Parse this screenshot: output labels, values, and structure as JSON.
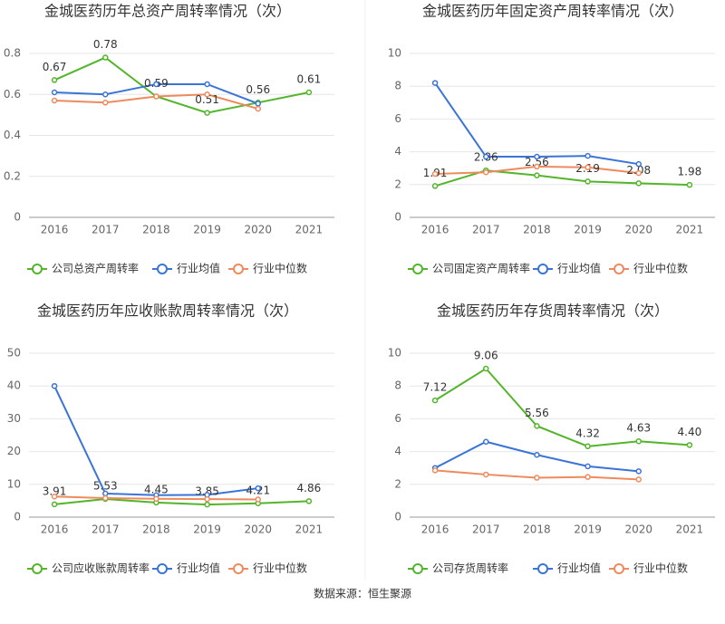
{
  "chart_data": [
    {
      "type": "line",
      "title": "金城医药历年总资产周转率情况（次）",
      "categories": [
        "2016",
        "2017",
        "2018",
        "2019",
        "2020",
        "2021"
      ],
      "series": [
        {
          "name": "公司总资产周转率",
          "color": "#52b52a",
          "values": [
            0.67,
            0.78,
            0.59,
            0.51,
            0.56,
            0.61
          ],
          "value_labels": [
            "0.67",
            "0.78",
            "0.59",
            "0.51",
            "0.56",
            "0.61"
          ]
        },
        {
          "name": "行业均值",
          "color": "#3a74d6",
          "values": [
            0.61,
            0.6,
            0.65,
            0.65,
            0.555,
            null
          ]
        },
        {
          "name": "行业中位数",
          "color": "#ef8a5e",
          "values": [
            0.57,
            0.56,
            0.59,
            0.6,
            0.53,
            null
          ]
        }
      ],
      "ylim": [
        0,
        0.8
      ],
      "yticks": [
        0,
        0.2,
        0.4,
        0.6,
        0.8
      ],
      "grid": true
    },
    {
      "type": "line",
      "title": "金城医药历年固定资产周转率情况（次）",
      "categories": [
        "2016",
        "2017",
        "2018",
        "2019",
        "2020",
        "2021"
      ],
      "series": [
        {
          "name": "公司固定资产周转率",
          "color": "#52b52a",
          "values": [
            1.91,
            2.86,
            2.56,
            2.19,
            2.08,
            1.98
          ],
          "value_labels": [
            "1.91",
            "2.86",
            "2.56",
            "2.19",
            "2.08",
            "1.98"
          ]
        },
        {
          "name": "行业均值",
          "color": "#3a74d6",
          "values": [
            8.2,
            3.7,
            3.7,
            3.75,
            3.25,
            null
          ]
        },
        {
          "name": "行业中位数",
          "color": "#ef8a5e",
          "values": [
            2.65,
            2.75,
            3.1,
            3.05,
            2.7,
            null
          ]
        }
      ],
      "ylim": [
        0,
        10
      ],
      "yticks": [
        0,
        2,
        4,
        6,
        8,
        10
      ],
      "grid": true
    },
    {
      "type": "line",
      "title": "金城医药历年应收账款周转率情况（次）",
      "categories": [
        "2016",
        "2017",
        "2018",
        "2019",
        "2020",
        "2021"
      ],
      "series": [
        {
          "name": "公司应收账款周转率",
          "color": "#52b52a",
          "values": [
            3.91,
            5.53,
            4.45,
            3.85,
            4.21,
            4.86
          ],
          "value_labels": [
            "3.91",
            "5.53",
            "4.45",
            "3.85",
            "4.21",
            "4.86"
          ]
        },
        {
          "name": "行业均值",
          "color": "#3a74d6",
          "values": [
            40,
            7.2,
            6.7,
            6.8,
            8.8,
            null
          ]
        },
        {
          "name": "行业中位数",
          "color": "#ef8a5e",
          "values": [
            6.3,
            5.8,
            5.6,
            5.5,
            5.4,
            null
          ]
        }
      ],
      "ylim": [
        0,
        50
      ],
      "yticks": [
        0,
        10,
        20,
        30,
        40,
        50
      ],
      "grid": true
    },
    {
      "type": "line",
      "title": "金城医药历年存货周转率情况（次）",
      "categories": [
        "2016",
        "2017",
        "2018",
        "2019",
        "2020",
        "2021"
      ],
      "series": [
        {
          "name": "公司存货周转率",
          "color": "#52b52a",
          "values": [
            7.12,
            9.06,
            5.56,
            4.32,
            4.63,
            4.4
          ],
          "value_labels": [
            "7.12",
            "9.06",
            "5.56",
            "4.32",
            "4.63",
            "4.40"
          ]
        },
        {
          "name": "行业均值",
          "color": "#3a74d6",
          "values": [
            3.0,
            4.6,
            3.8,
            3.1,
            2.8,
            null
          ]
        },
        {
          "name": "行业中位数",
          "color": "#ef8a5e",
          "values": [
            2.85,
            2.6,
            2.4,
            2.45,
            2.3,
            null
          ]
        }
      ],
      "ylim": [
        0,
        10
      ],
      "yticks": [
        0,
        2,
        4,
        6,
        8,
        10
      ],
      "grid": true
    }
  ],
  "source": "数据来源：恒生聚源"
}
